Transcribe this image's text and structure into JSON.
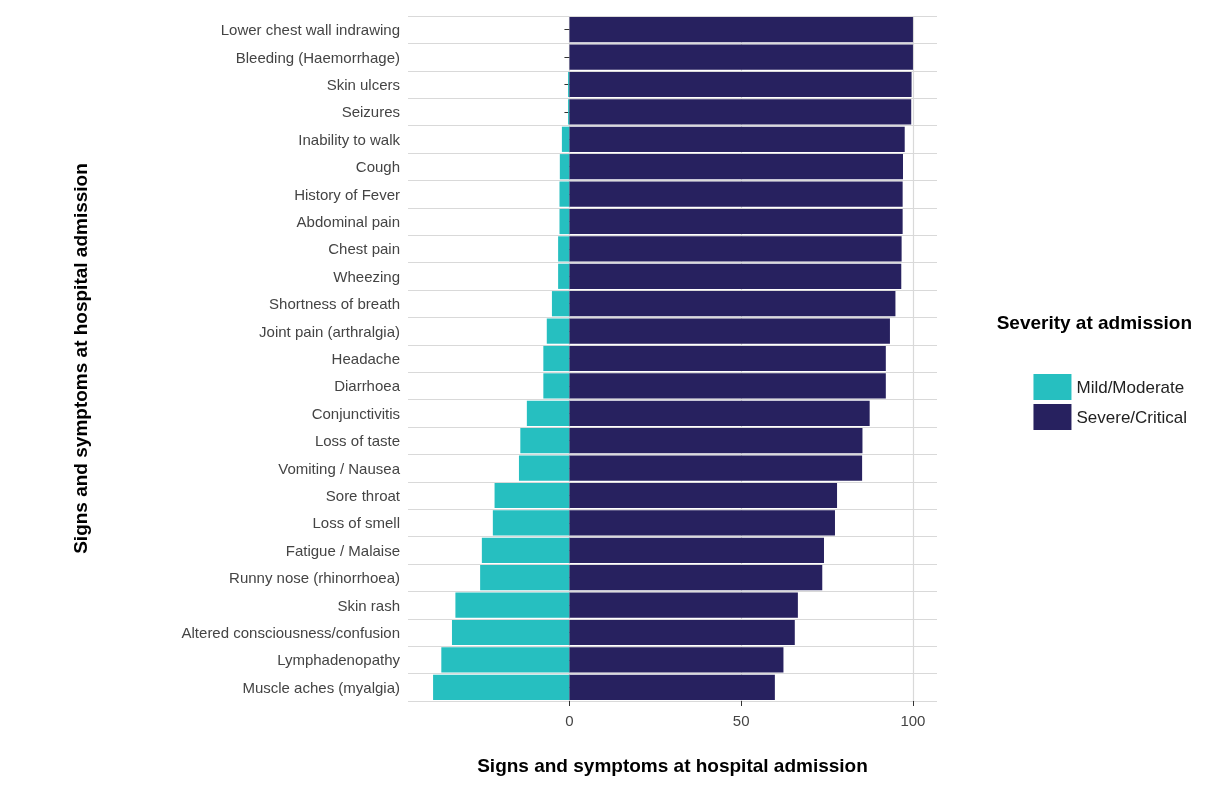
{
  "chart_data": {
    "type": "bar",
    "orientation": "horizontal",
    "stacked": true,
    "xlabel": "Signs and symptoms at hospital admission",
    "ylabel": "Signs and symptoms at hospital admission",
    "legend_title": "Severity at admission",
    "categories": [
      "Lower chest wall indrawing",
      "Bleeding (Haemorrhage)",
      "Skin ulcers",
      "Seizures",
      "Inability to walk",
      "Cough",
      "History of Fever",
      "Abdominal pain",
      "Chest pain",
      "Wheezing",
      "Shortness of breath",
      "Joint pain (arthralgia)",
      "Headache",
      "Diarrhoea",
      "Conjunctivitis",
      "Loss of taste",
      "Vomiting / Nausea",
      "Sore throat",
      "Loss of smell",
      "Fatigue / Malaise",
      "Runny nose (rhinorrhoea)",
      "Skin rash",
      "Altered consciousness/confusion",
      "Lymphadenopathy",
      "Muscle aches (myalgia)"
    ],
    "series": [
      {
        "name": "Mild/Moderate",
        "color": "#26bfc0",
        "values": [
          0,
          0,
          -0.4,
          -0.4,
          -2.2,
          -2.8,
          -2.9,
          -2.9,
          -3.3,
          -3.3,
          -5.1,
          -6.6,
          -7.6,
          -7.6,
          -12.4,
          -14.3,
          -14.7,
          -21.8,
          -22.3,
          -25.5,
          -26,
          -33.2,
          -34.2,
          -37.3,
          -39.7
        ]
      },
      {
        "name": "Severe/Critical",
        "color": "#27215f",
        "values": [
          100,
          100,
          99.6,
          99.5,
          97.6,
          97.1,
          97,
          97,
          96.7,
          96.6,
          94.9,
          93.3,
          92.1,
          92.1,
          87.4,
          85.3,
          85.2,
          77.9,
          77.3,
          74.1,
          73.6,
          66.5,
          65.6,
          62.3,
          59.8
        ]
      }
    ],
    "xlim": [
      -47,
      107
    ],
    "xticks": [
      0,
      50,
      100
    ],
    "grid": true,
    "legend": "right"
  }
}
